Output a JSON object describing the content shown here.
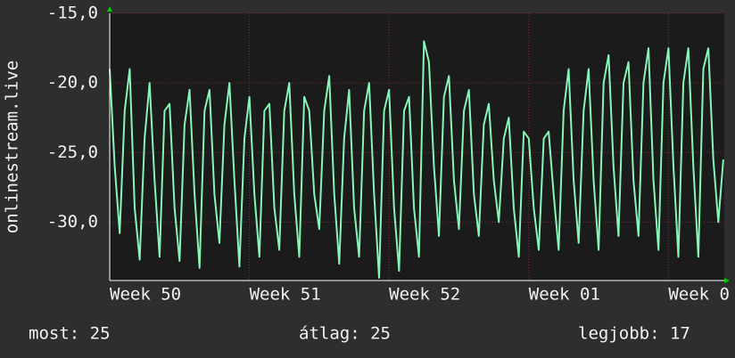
{
  "chart_data": {
    "type": "line",
    "ylabel": "onlinestream.live",
    "color": "#86f5b8",
    "grid": true,
    "xlim": [
      0,
      30.8
    ],
    "xticks": [
      {
        "value": 0,
        "label": "Week 50"
      },
      {
        "value": 7,
        "label": "Week 51"
      },
      {
        "value": 14,
        "label": "Week 52"
      },
      {
        "value": 21,
        "label": "Week 01"
      },
      {
        "value": 28,
        "label": "Week 0"
      }
    ],
    "ylim": [
      -34.2,
      -15
    ],
    "yticks": [
      {
        "value": -15,
        "label": "-15,0"
      },
      {
        "value": -20,
        "label": "-20,0"
      },
      {
        "value": -25,
        "label": "-25,0"
      },
      {
        "value": -30,
        "label": "-30,0"
      }
    ],
    "x": [
      0,
      0.25,
      0.5,
      0.75,
      1,
      1.25,
      1.5,
      1.75,
      2,
      2.25,
      2.5,
      2.75,
      3,
      3.25,
      3.5,
      3.75,
      4,
      4.25,
      4.5,
      4.75,
      5,
      5.25,
      5.5,
      5.75,
      6,
      6.25,
      6.5,
      6.75,
      7,
      7.25,
      7.5,
      7.75,
      8,
      8.25,
      8.5,
      8.75,
      9,
      9.25,
      9.5,
      9.75,
      10,
      10.25,
      10.5,
      10.75,
      11,
      11.25,
      11.5,
      11.75,
      12,
      12.25,
      12.5,
      12.75,
      13,
      13.25,
      13.5,
      13.75,
      14,
      14.25,
      14.5,
      14.75,
      15,
      15.25,
      15.5,
      15.75,
      16,
      16.25,
      16.5,
      16.75,
      17,
      17.25,
      17.5,
      17.75,
      18,
      18.25,
      18.5,
      18.75,
      19,
      19.25,
      19.5,
      19.75,
      20,
      20.25,
      20.5,
      20.75,
      21,
      21.25,
      21.5,
      21.75,
      22,
      22.25,
      22.5,
      22.75,
      23,
      23.25,
      23.5,
      23.75,
      24,
      24.25,
      24.5,
      24.75,
      25,
      25.25,
      25.5,
      25.75,
      26,
      26.25,
      26.5,
      26.75,
      27,
      27.25,
      27.5,
      27.75,
      28,
      28.25,
      28.5,
      28.75,
      29,
      29.25,
      29.5,
      29.75,
      30,
      30.25,
      30.5,
      30.75
    ],
    "values": [
      -19,
      -26,
      -30.8,
      -22,
      -19,
      -29,
      -32.7,
      -24,
      -20,
      -27,
      -32.5,
      -22,
      -21.5,
      -29,
      -32.8,
      -23,
      -20.5,
      -28,
      -33.3,
      -22,
      -20.5,
      -28,
      -31.5,
      -23,
      -20,
      -27,
      -33.2,
      -24,
      -21,
      -28,
      -32.5,
      -22,
      -21.5,
      -29,
      -32,
      -22,
      -20,
      -28,
      -32.5,
      -21,
      -22,
      -28,
      -30.5,
      -22,
      -19.5,
      -28,
      -33,
      -24,
      -20.5,
      -29,
      -32.5,
      -22,
      -20,
      -28,
      -34,
      -22,
      -20.5,
      -29,
      -33.5,
      -22,
      -21,
      -29,
      -32.5,
      -17,
      -18.5,
      -26,
      -31,
      -21,
      -19.5,
      -27,
      -30.5,
      -22,
      -20.5,
      -28,
      -31,
      -23,
      -21.5,
      -27,
      -30,
      -24,
      -22.5,
      -29,
      -32.5,
      -23.5,
      -24,
      -29,
      -32,
      -24,
      -23.5,
      -28,
      -32,
      -22,
      -19,
      -27,
      -31.5,
      -22,
      -19,
      -27,
      -32,
      -20,
      -18,
      -26,
      -31,
      -20,
      -18.5,
      -27,
      -31,
      -20,
      -17.5,
      -27,
      -32,
      -20,
      -17.5,
      -26,
      -32.5,
      -20,
      -17.5,
      -26,
      -32.5,
      -19,
      -17.5,
      -25.5,
      -30,
      -25.5
    ]
  },
  "footer": [
    "most: 25",
    "átlag: 25",
    "legjobb: 17"
  ]
}
